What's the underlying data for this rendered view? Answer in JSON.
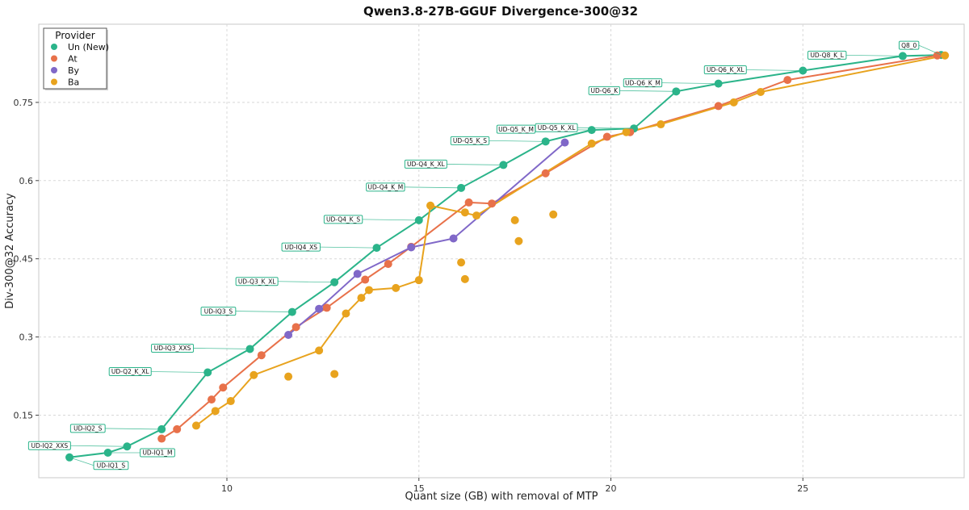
{
  "chart_data": {
    "type": "scatter",
    "title": "Qwen3.8-27B-GGUF Divergence-300@32",
    "xlabel": "Quant size (GB) with removal of MTP",
    "ylabel": "Div-300@32 Accuracy",
    "xlim": [
      5.1,
      29.2
    ],
    "ylim": [
      0.03,
      0.9
    ],
    "xticks": [
      10,
      15,
      20,
      25
    ],
    "yticks": [
      0.15,
      0.3,
      0.45,
      0.6,
      0.75
    ],
    "ytick_labels": [
      "0.15",
      "0.3",
      "0.45",
      "0.6",
      "0.75"
    ],
    "grid": true,
    "legend": {
      "title": "Provider",
      "position": "top-left"
    },
    "series": [
      {
        "name": "Un (New)",
        "color": "#2bb48a",
        "x": [
          5.9,
          6.9,
          7.4,
          8.3,
          9.5,
          10.6,
          11.7,
          12.8,
          13.9,
          15.0,
          16.1,
          17.2,
          18.3,
          19.5,
          20.6,
          21.7,
          22.8,
          25.0,
          27.6,
          28.6
        ],
        "y": [
          0.069,
          0.078,
          0.09,
          0.123,
          0.232,
          0.277,
          0.348,
          0.405,
          0.471,
          0.524,
          0.586,
          0.63,
          0.675,
          0.697,
          0.7,
          0.771,
          0.786,
          0.811,
          0.839,
          0.841
        ],
        "labels": [
          "UD-IQ1_S",
          "UD-IQ1_M",
          "UD-IQ2_XXS",
          "UD-IQ2_S",
          "UD-Q2_K_XL",
          "UD-IQ3_XXS",
          "UD-IQ3_S",
          "UD-Q3_K_XL",
          "UD-IQ4_XS",
          "UD-Q4_K_S",
          "UD-Q4_K_M",
          "UD-Q4_K_XL",
          "UD-Q5_K_S",
          "UD-Q5_K_M",
          "UD-Q5_K_XL",
          "UD-Q6_K",
          "UD-Q6_K_M",
          "UD-Q6_K_XL",
          "UD-Q8_K_L",
          "Q8_0"
        ]
      },
      {
        "name": "At",
        "color": "#e8714a",
        "x": [
          8.3,
          8.7,
          9.6,
          9.9,
          10.9,
          11.8,
          12.6,
          13.6,
          14.2,
          14.8,
          16.3,
          16.9,
          18.3,
          19.9,
          20.5,
          22.8,
          24.6,
          28.5
        ],
        "y": [
          0.105,
          0.123,
          0.18,
          0.203,
          0.265,
          0.319,
          0.356,
          0.41,
          0.44,
          0.473,
          0.558,
          0.556,
          0.614,
          0.684,
          0.693,
          0.743,
          0.793,
          0.84
        ]
      },
      {
        "name": "By",
        "color": "#8068c8",
        "x": [
          11.6,
          12.4,
          13.4,
          14.8,
          15.9,
          18.8
        ],
        "y": [
          0.304,
          0.354,
          0.421,
          0.472,
          0.489,
          0.673
        ]
      },
      {
        "name": "Ba",
        "color": "#e8a31e",
        "x": [
          9.2,
          9.7,
          10.1,
          10.7,
          12.4,
          13.1,
          13.5,
          13.7,
          14.4,
          15.0,
          15.3,
          16.5,
          19.5,
          20.4,
          21.3,
          23.2,
          23.9,
          28.7
        ],
        "y": [
          0.13,
          0.158,
          0.177,
          0.227,
          0.274,
          0.345,
          0.375,
          0.39,
          0.394,
          0.409,
          0.552,
          0.533,
          0.671,
          0.693,
          0.708,
          0.75,
          0.77,
          0.84
        ],
        "extra_points": {
          "x": [
            11.6,
            12.8,
            16.1,
            16.2,
            16.2,
            17.5,
            17.6,
            18.5
          ],
          "y": [
            0.224,
            0.229,
            0.443,
            0.411,
            0.539,
            0.524,
            0.484,
            0.535
          ]
        }
      }
    ]
  }
}
